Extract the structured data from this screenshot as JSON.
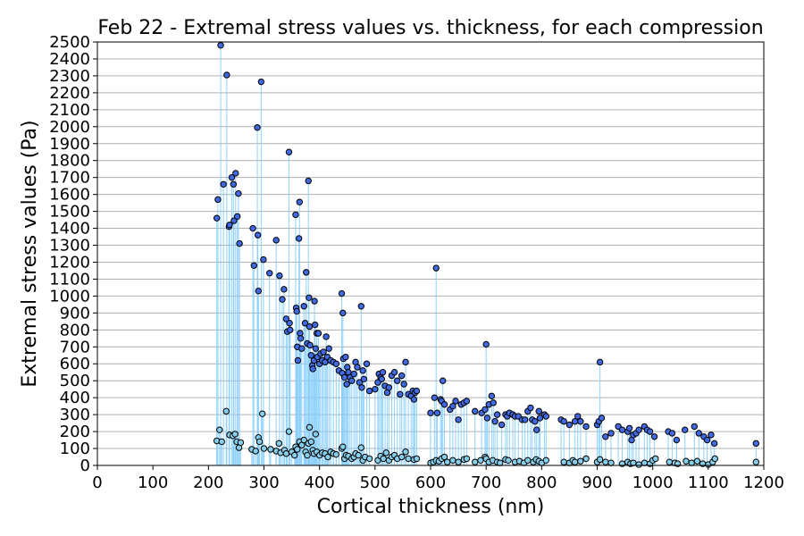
{
  "chart_data": {
    "type": "scatter",
    "title": "Feb 22 - Extremal stress values vs. thickness, for each compression",
    "xlabel": "Cortical thickness (nm)",
    "ylabel": "Extremal stress values (Pa)",
    "xlim": [
      0,
      1200
    ],
    "ylim": [
      0,
      2500
    ],
    "xticks": [
      0,
      100,
      200,
      300,
      400,
      500,
      600,
      700,
      800,
      900,
      1000,
      1100,
      1200
    ],
    "yticks": [
      0,
      100,
      200,
      300,
      400,
      500,
      600,
      700,
      800,
      900,
      1000,
      1100,
      1200,
      1300,
      1400,
      1500,
      1600,
      1700,
      1800,
      1900,
      2000,
      2100,
      2200,
      2300,
      2400,
      2500
    ],
    "grid": "horizontal",
    "colors": {
      "max_marker": "#4169e1",
      "min_marker": "#87ceeb",
      "edge": "#000000",
      "stem": "#87cefa",
      "grid": "#b0b0b0"
    },
    "series": [
      {
        "role": "max",
        "points": [
          [
            215,
            1460
          ],
          [
            217,
            1570
          ],
          [
            222,
            2480
          ],
          [
            227,
            1660
          ],
          [
            233,
            2305
          ],
          [
            237,
            1410
          ],
          [
            238,
            1420
          ],
          [
            242,
            1700
          ],
          [
            245,
            1660
          ],
          [
            246,
            1445
          ],
          [
            249,
            1725
          ],
          [
            252,
            1470
          ],
          [
            254,
            1605
          ],
          [
            256,
            1310
          ],
          [
            280,
            1400
          ],
          [
            282,
            1180
          ],
          [
            288,
            1995
          ],
          [
            289,
            1360
          ],
          [
            290,
            1030
          ],
          [
            295,
            2265
          ],
          [
            299,
            1215
          ],
          [
            310,
            1135
          ],
          [
            322,
            1330
          ],
          [
            328,
            1120
          ],
          [
            333,
            980
          ],
          [
            336,
            1040
          ],
          [
            340,
            865
          ],
          [
            342,
            790
          ],
          [
            345,
            1850
          ],
          [
            346,
            840
          ],
          [
            347,
            800
          ],
          [
            357,
            1480
          ],
          [
            358,
            930
          ],
          [
            359,
            910
          ],
          [
            360,
            700
          ],
          [
            361,
            620
          ],
          [
            363,
            1340
          ],
          [
            364,
            1555
          ],
          [
            365,
            780
          ],
          [
            366,
            750
          ],
          [
            368,
            690
          ],
          [
            372,
            940
          ],
          [
            374,
            840
          ],
          [
            376,
            1140
          ],
          [
            378,
            720
          ],
          [
            380,
            1680
          ],
          [
            381,
            990
          ],
          [
            382,
            820
          ],
          [
            383,
            710
          ],
          [
            385,
            650
          ],
          [
            387,
            590
          ],
          [
            388,
            570
          ],
          [
            390,
            620
          ],
          [
            391,
            970
          ],
          [
            392,
            830
          ],
          [
            393,
            690
          ],
          [
            395,
            780
          ],
          [
            396,
            640
          ],
          [
            398,
            780
          ],
          [
            400,
            600
          ],
          [
            402,
            660
          ],
          [
            405,
            620
          ],
          [
            407,
            670
          ],
          [
            410,
            610
          ],
          [
            412,
            760
          ],
          [
            414,
            640
          ],
          [
            417,
            690
          ],
          [
            420,
            620
          ],
          [
            425,
            610
          ],
          [
            430,
            600
          ],
          [
            435,
            560
          ],
          [
            440,
            1015
          ],
          [
            441,
            545
          ],
          [
            442,
            900
          ],
          [
            443,
            630
          ],
          [
            445,
            520
          ],
          [
            447,
            640
          ],
          [
            449,
            480
          ],
          [
            450,
            580
          ],
          [
            452,
            550
          ],
          [
            455,
            520
          ],
          [
            458,
            500
          ],
          [
            462,
            540
          ],
          [
            465,
            610
          ],
          [
            468,
            580
          ],
          [
            472,
            490
          ],
          [
            475,
            940
          ],
          [
            476,
            460
          ],
          [
            478,
            560
          ],
          [
            480,
            510
          ],
          [
            485,
            600
          ],
          [
            490,
            440
          ],
          [
            500,
            450
          ],
          [
            505,
            490
          ],
          [
            507,
            540
          ],
          [
            510,
            520
          ],
          [
            512,
            510
          ],
          [
            514,
            550
          ],
          [
            518,
            470
          ],
          [
            522,
            430
          ],
          [
            525,
            460
          ],
          [
            530,
            530
          ],
          [
            535,
            550
          ],
          [
            540,
            500
          ],
          [
            545,
            420
          ],
          [
            548,
            530
          ],
          [
            552,
            480
          ],
          [
            555,
            610
          ],
          [
            560,
            420
          ],
          [
            565,
            410
          ],
          [
            568,
            440
          ],
          [
            570,
            390
          ],
          [
            572,
            430
          ],
          [
            575,
            440
          ],
          [
            600,
            310
          ],
          [
            607,
            400
          ],
          [
            610,
            1165
          ],
          [
            612,
            310
          ],
          [
            618,
            390
          ],
          [
            620,
            380
          ],
          [
            622,
            500
          ],
          [
            625,
            360
          ],
          [
            635,
            330
          ],
          [
            640,
            350
          ],
          [
            645,
            380
          ],
          [
            650,
            270
          ],
          [
            655,
            360
          ],
          [
            660,
            370
          ],
          [
            665,
            380
          ],
          [
            680,
            320
          ],
          [
            692,
            310
          ],
          [
            698,
            330
          ],
          [
            700,
            715
          ],
          [
            702,
            280
          ],
          [
            705,
            360
          ],
          [
            710,
            410
          ],
          [
            713,
            370
          ],
          [
            716,
            260
          ],
          [
            720,
            300
          ],
          [
            728,
            240
          ],
          [
            735,
            300
          ],
          [
            738,
            290
          ],
          [
            742,
            310
          ],
          [
            748,
            300
          ],
          [
            752,
            290
          ],
          [
            758,
            290
          ],
          [
            765,
            270
          ],
          [
            770,
            270
          ],
          [
            775,
            320
          ],
          [
            780,
            340
          ],
          [
            783,
            270
          ],
          [
            788,
            260
          ],
          [
            791,
            210
          ],
          [
            795,
            320
          ],
          [
            797,
            280
          ],
          [
            805,
            300
          ],
          [
            808,
            290
          ],
          [
            835,
            270
          ],
          [
            840,
            260
          ],
          [
            850,
            240
          ],
          [
            860,
            260
          ],
          [
            865,
            290
          ],
          [
            870,
            260
          ],
          [
            880,
            230
          ],
          [
            900,
            240
          ],
          [
            903,
            260
          ],
          [
            905,
            610
          ],
          [
            908,
            280
          ],
          [
            915,
            170
          ],
          [
            925,
            190
          ],
          [
            938,
            230
          ],
          [
            945,
            210
          ],
          [
            955,
            200
          ],
          [
            958,
            220
          ],
          [
            962,
            150
          ],
          [
            965,
            180
          ],
          [
            970,
            190
          ],
          [
            975,
            210
          ],
          [
            985,
            230
          ],
          [
            990,
            210
          ],
          [
            995,
            200
          ],
          [
            1003,
            170
          ],
          [
            1028,
            200
          ],
          [
            1035,
            190
          ],
          [
            1043,
            150
          ],
          [
            1058,
            210
          ],
          [
            1075,
            230
          ],
          [
            1083,
            190
          ],
          [
            1092,
            170
          ],
          [
            1098,
            150
          ],
          [
            1105,
            180
          ],
          [
            1111,
            130
          ],
          [
            1186,
            130
          ]
        ]
      },
      {
        "role": "min",
        "points": [
          [
            215,
            145
          ],
          [
            220,
            210
          ],
          [
            224,
            140
          ],
          [
            232,
            320
          ],
          [
            238,
            180
          ],
          [
            244,
            175
          ],
          [
            248,
            185
          ],
          [
            251,
            140
          ],
          [
            255,
            105
          ],
          [
            258,
            135
          ],
          [
            278,
            95
          ],
          [
            285,
            85
          ],
          [
            290,
            165
          ],
          [
            292,
            140
          ],
          [
            297,
            305
          ],
          [
            300,
            100
          ],
          [
            312,
            95
          ],
          [
            322,
            85
          ],
          [
            327,
            130
          ],
          [
            330,
            75
          ],
          [
            337,
            90
          ],
          [
            340,
            70
          ],
          [
            345,
            200
          ],
          [
            350,
            80
          ],
          [
            355,
            60
          ],
          [
            357,
            110
          ],
          [
            360,
            95
          ],
          [
            364,
            140
          ],
          [
            368,
            120
          ],
          [
            372,
            150
          ],
          [
            375,
            80
          ],
          [
            378,
            60
          ],
          [
            380,
            130
          ],
          [
            382,
            225
          ],
          [
            385,
            140
          ],
          [
            388,
            90
          ],
          [
            390,
            70
          ],
          [
            393,
            185
          ],
          [
            395,
            80
          ],
          [
            400,
            60
          ],
          [
            405,
            75
          ],
          [
            410,
            70
          ],
          [
            415,
            50
          ],
          [
            420,
            80
          ],
          [
            425,
            70
          ],
          [
            430,
            65
          ],
          [
            440,
            100
          ],
          [
            442,
            110
          ],
          [
            445,
            40
          ],
          [
            448,
            60
          ],
          [
            452,
            55
          ],
          [
            458,
            40
          ],
          [
            462,
            50
          ],
          [
            465,
            70
          ],
          [
            470,
            60
          ],
          [
            475,
            105
          ],
          [
            478,
            30
          ],
          [
            482,
            50
          ],
          [
            490,
            40
          ],
          [
            505,
            30
          ],
          [
            510,
            55
          ],
          [
            515,
            40
          ],
          [
            520,
            75
          ],
          [
            525,
            30
          ],
          [
            530,
            50
          ],
          [
            535,
            60
          ],
          [
            540,
            40
          ],
          [
            548,
            50
          ],
          [
            555,
            80
          ],
          [
            560,
            40
          ],
          [
            570,
            35
          ],
          [
            575,
            40
          ],
          [
            600,
            15
          ],
          [
            605,
            20
          ],
          [
            610,
            30
          ],
          [
            615,
            25
          ],
          [
            620,
            40
          ],
          [
            625,
            50
          ],
          [
            630,
            20
          ],
          [
            640,
            30
          ],
          [
            650,
            20
          ],
          [
            660,
            35
          ],
          [
            665,
            40
          ],
          [
            680,
            20
          ],
          [
            690,
            30
          ],
          [
            698,
            50
          ],
          [
            700,
            40
          ],
          [
            705,
            20
          ],
          [
            712,
            30
          ],
          [
            720,
            20
          ],
          [
            725,
            15
          ],
          [
            735,
            35
          ],
          [
            740,
            30
          ],
          [
            752,
            20
          ],
          [
            760,
            25
          ],
          [
            768,
            15
          ],
          [
            775,
            30
          ],
          [
            785,
            20
          ],
          [
            790,
            35
          ],
          [
            795,
            25
          ],
          [
            800,
            15
          ],
          [
            808,
            30
          ],
          [
            840,
            20
          ],
          [
            850,
            15
          ],
          [
            856,
            30
          ],
          [
            860,
            20
          ],
          [
            870,
            25
          ],
          [
            880,
            40
          ],
          [
            900,
            20
          ],
          [
            905,
            35
          ],
          [
            915,
            20
          ],
          [
            925,
            15
          ],
          [
            945,
            10
          ],
          [
            955,
            20
          ],
          [
            960,
            10
          ],
          [
            965,
            15
          ],
          [
            975,
            5
          ],
          [
            985,
            15
          ],
          [
            995,
            10
          ],
          [
            1000,
            30
          ],
          [
            1005,
            40
          ],
          [
            1030,
            20
          ],
          [
            1040,
            15
          ],
          [
            1045,
            10
          ],
          [
            1060,
            25
          ],
          [
            1070,
            15
          ],
          [
            1080,
            25
          ],
          [
            1090,
            10
          ],
          [
            1100,
            5
          ],
          [
            1108,
            20
          ],
          [
            1112,
            40
          ],
          [
            1186,
            20
          ]
        ]
      }
    ]
  }
}
